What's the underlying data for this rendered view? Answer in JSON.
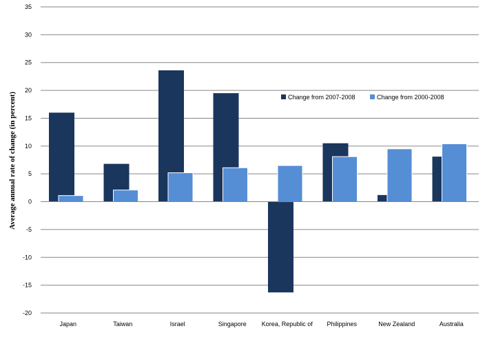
{
  "chart_data": {
    "type": "bar",
    "title": "",
    "xlabel": "",
    "ylabel": "Average annual rate of change  (in percent)",
    "ylim": [
      -20,
      35
    ],
    "ytick_step": 5,
    "yticks": [
      "35",
      "30",
      "25",
      "20",
      "15",
      "10",
      "5",
      "0",
      "-5",
      "-10",
      "-15",
      "-20"
    ],
    "grid": true,
    "legend_position": "upper-right inside plot",
    "categories": [
      "Japan",
      "Taiwan",
      "Israel",
      "Singapore",
      "Korea, Republic of",
      "Philippines",
      "New Zealand",
      "Australia"
    ],
    "series": [
      {
        "name": "Change from 2007-2008",
        "color": "#1b365d",
        "values": [
          16.0,
          6.8,
          23.6,
          19.5,
          -16.3,
          10.5,
          1.2,
          8.1
        ]
      },
      {
        "name": "Change from 2000-2008",
        "color": "#558ed5",
        "values": [
          1.1,
          2.1,
          5.2,
          6.1,
          6.5,
          8.1,
          9.5,
          10.4
        ]
      }
    ]
  }
}
